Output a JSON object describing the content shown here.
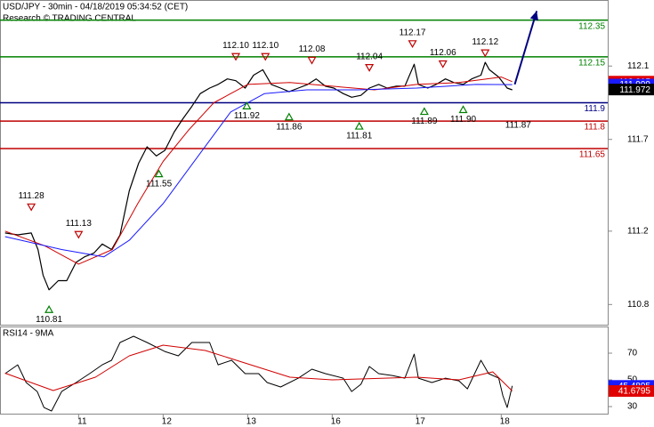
{
  "chart_data": [
    {
      "type": "line",
      "title": "USD/JPY - 30min - 04/18/2019 05:34:52 (CET)",
      "subtitle": "Research © TRADING CENTRAL",
      "xlim": [
        0.07,
        7.26
      ],
      "ylim": [
        110.69,
        112.46
      ],
      "yticks": [
        110.8,
        111.2,
        111.7,
        112.1
      ],
      "series": [
        {
          "color": "#000000",
          "width": 1.2,
          "x": [
            0.13,
            0.28,
            0.44,
            0.52,
            0.58,
            0.65,
            0.76,
            0.86,
            0.97,
            1.07,
            1.18,
            1.28,
            1.39,
            1.49,
            1.6,
            1.71,
            1.81,
            1.92,
            2.02,
            2.13,
            2.23,
            2.34,
            2.44,
            2.55,
            2.65,
            2.76,
            2.86,
            2.97,
            3.07,
            3.18,
            3.28,
            3.39,
            3.49,
            3.6,
            3.71,
            3.81,
            3.92,
            4.02,
            4.13,
            4.23,
            4.34,
            4.44,
            4.55,
            4.65,
            4.76,
            4.86,
            4.97,
            5.02,
            5.13,
            5.23,
            5.34,
            5.44,
            5.55,
            5.65,
            5.76,
            5.81,
            5.86,
            5.97,
            6.07,
            6.13
          ],
          "values": [
            111.19,
            111.18,
            111.19,
            111.1,
            110.96,
            110.88,
            110.93,
            110.93,
            111.03,
            111.06,
            111.08,
            111.13,
            111.1,
            111.18,
            111.42,
            111.57,
            111.66,
            111.61,
            111.64,
            111.74,
            111.81,
            111.88,
            111.95,
            111.98,
            112.0,
            112.03,
            112.02,
            111.98,
            112.05,
            112.08,
            112.0,
            111.98,
            111.96,
            111.98,
            112.0,
            112.03,
            111.99,
            111.98,
            111.95,
            111.93,
            111.94,
            111.98,
            112.0,
            111.98,
            111.99,
            111.99,
            112.11,
            112.0,
            111.98,
            112.0,
            112.03,
            112.01,
            112.0,
            112.03,
            112.05,
            112.12,
            112.08,
            112.04,
            111.98,
            111.97
          ]
        },
        {
          "color": "#d00000",
          "width": 1,
          "x": [
            0.13,
            0.6,
            1.0,
            1.4,
            1.7,
            2.0,
            2.3,
            2.6,
            3.0,
            3.5,
            4.0,
            4.5,
            5.0,
            5.5,
            6.0,
            6.13
          ],
          "values": [
            111.2,
            111.12,
            111.02,
            111.1,
            111.35,
            111.58,
            111.75,
            111.9,
            112.0,
            112.01,
            111.99,
            111.97,
            112.0,
            112.01,
            112.04,
            112.015
          ]
        },
        {
          "color": "#1a1aff",
          "width": 1,
          "x": [
            0.13,
            0.8,
            1.3,
            1.6,
            2.0,
            2.4,
            2.8,
            3.2,
            3.7,
            4.3,
            5.0,
            5.7,
            6.13
          ],
          "values": [
            111.17,
            111.1,
            111.06,
            111.15,
            111.35,
            111.6,
            111.85,
            111.95,
            111.97,
            111.97,
            111.98,
            112.0,
            111.999
          ]
        }
      ],
      "levels": [
        {
          "value": 112.35,
          "color": "#008000"
        },
        {
          "value": 112.15,
          "color": "#008000"
        },
        {
          "value": 111.9,
          "color": "#000080"
        },
        {
          "value": 111.8,
          "color": "#c00000"
        },
        {
          "value": 111.65,
          "color": "#c00000"
        }
      ],
      "pivots": [
        {
          "x": 0.44,
          "value": 111.28,
          "label": "111.28",
          "kind": "high"
        },
        {
          "x": 1.0,
          "value": 111.13,
          "label": "111.13",
          "kind": "high"
        },
        {
          "x": 2.86,
          "value": 112.1,
          "label": "112.10",
          "kind": "high"
        },
        {
          "x": 3.21,
          "value": 112.1,
          "label": "112.10",
          "kind": "high"
        },
        {
          "x": 3.76,
          "value": 112.08,
          "label": "112.08",
          "kind": "high"
        },
        {
          "x": 4.44,
          "value": 112.04,
          "label": "112.04",
          "kind": "high"
        },
        {
          "x": 4.95,
          "value": 112.17,
          "label": "112.17",
          "kind": "high"
        },
        {
          "x": 5.31,
          "value": 112.06,
          "label": "112.06",
          "kind": "high"
        },
        {
          "x": 5.81,
          "value": 112.12,
          "label": "112.12",
          "kind": "high"
        },
        {
          "x": 0.65,
          "value": 110.81,
          "label": "110.81",
          "kind": "low"
        },
        {
          "x": 1.95,
          "value": 111.55,
          "label": "111.55",
          "kind": "low"
        },
        {
          "x": 2.99,
          "value": 111.92,
          "label": "111.92",
          "kind": "low"
        },
        {
          "x": 3.49,
          "value": 111.86,
          "label": "111.86",
          "kind": "low"
        },
        {
          "x": 4.32,
          "value": 111.81,
          "label": "111.81",
          "kind": "low"
        },
        {
          "x": 5.09,
          "value": 111.89,
          "label": "111.89",
          "kind": "low"
        },
        {
          "x": 5.55,
          "value": 111.9,
          "label": "111.90",
          "kind": "low"
        },
        {
          "x": 6.2,
          "value": 111.87,
          "label": "111.87",
          "kind": "low",
          "marker": false
        }
      ],
      "forecast": {
        "color": "#000080",
        "x": [
          6.16,
          6.42
        ],
        "values": [
          112.0,
          112.4
        ]
      },
      "price_tags": [
        {
          "value": 112.015,
          "color": "#e00000"
        },
        {
          "value": 111.999,
          "color": "#1a1aff"
        },
        {
          "value": 111.972,
          "color": "#000000"
        }
      ]
    },
    {
      "type": "line",
      "title": "RSI14 - 9MA",
      "xlim": [
        0.07,
        7.26
      ],
      "ylim": [
        24.7,
        90
      ],
      "yticks": [
        30,
        50,
        70
      ],
      "xticks": [
        {
          "value": 1,
          "label": "11"
        },
        {
          "value": 2,
          "label": "12"
        },
        {
          "value": 3,
          "label": "13"
        },
        {
          "value": 4,
          "label": "16"
        },
        {
          "value": 5,
          "label": "17"
        },
        {
          "value": 6,
          "label": "18"
        }
      ],
      "series": [
        {
          "color": "#000000",
          "width": 1,
          "x": [
            0.13,
            0.28,
            0.38,
            0.51,
            0.59,
            0.68,
            0.8,
            0.97,
            1.13,
            1.28,
            1.39,
            1.49,
            1.65,
            1.81,
            2.02,
            2.18,
            2.34,
            2.55,
            2.65,
            2.81,
            2.97,
            3.13,
            3.23,
            3.39,
            3.6,
            3.76,
            3.92,
            4.13,
            4.23,
            4.34,
            4.44,
            4.55,
            4.71,
            4.86,
            4.97,
            5.02,
            5.18,
            5.34,
            5.5,
            5.6,
            5.76,
            5.85,
            5.97,
            6.02,
            6.07,
            6.13
          ],
          "values": [
            54.7,
            61.3,
            48.0,
            41.3,
            29.3,
            26.7,
            41.3,
            48.0,
            54.7,
            61.3,
            64.7,
            78.0,
            82.7,
            78.0,
            71.3,
            68.0,
            78.0,
            78.0,
            61.3,
            64.7,
            54.7,
            54.7,
            48.0,
            44.7,
            51.3,
            58.0,
            54.7,
            51.3,
            41.3,
            46.7,
            60.0,
            54.7,
            53.3,
            51.3,
            69.3,
            51.3,
            48.0,
            51.3,
            49.3,
            43.3,
            64.7,
            54.7,
            51.3,
            38.0,
            29.3,
            45.4895
          ]
        },
        {
          "color": "#d00000",
          "width": 1,
          "x": [
            0.13,
            0.7,
            1.2,
            1.6,
            2.0,
            2.5,
            3.0,
            3.5,
            4.0,
            4.5,
            5.0,
            5.5,
            5.9,
            6.13
          ],
          "values": [
            55,
            42,
            52,
            68,
            76,
            72,
            62,
            52,
            50,
            51,
            52,
            50,
            56,
            41.6795
          ]
        }
      ],
      "value_tags": [
        {
          "value": 45.4895,
          "color": "#1a1aff"
        },
        {
          "value": 41.6795,
          "color": "#e00000"
        }
      ]
    }
  ]
}
